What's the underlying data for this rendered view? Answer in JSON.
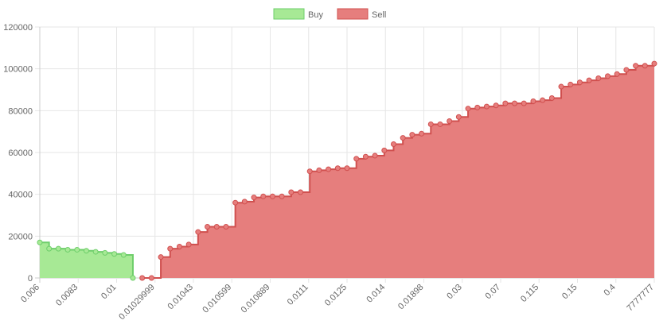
{
  "chart_data": {
    "type": "area",
    "title": "",
    "xlabel": "",
    "ylabel": "",
    "ylim": [
      0,
      120000
    ],
    "y_ticks": [
      "0",
      "20000",
      "40000",
      "60000",
      "80000",
      "100000",
      "120000"
    ],
    "y_tick_values": [
      0,
      20000,
      40000,
      60000,
      80000,
      100000,
      120000
    ],
    "grid": true,
    "legend_position": "top-center",
    "x_tick_labels": [
      "0.006",
      "0.0083",
      "0.01",
      "0.01029999",
      "0.01043",
      "0.010599",
      "0.010889",
      "0.0111",
      "0.0125",
      "0.014",
      "0.01898",
      "0.03",
      "0.07",
      "0.115",
      "0.15",
      "0.4",
      "7777777"
    ],
    "series": [
      {
        "name": "Buy",
        "color": "#6ece6b",
        "fill": "#a7e995",
        "points": [
          17000,
          14000,
          14000,
          13500,
          13500,
          13000,
          12500,
          12000,
          11500,
          11000,
          0
        ]
      },
      {
        "name": "Sell",
        "color": "#d0504f",
        "fill": "#e67e7d",
        "offset": 11,
        "points": [
          0,
          0,
          10000,
          14000,
          15000,
          16000,
          22000,
          24500,
          24500,
          24500,
          36000,
          36500,
          38500,
          39000,
          39000,
          39000,
          41000,
          41000,
          51000,
          51500,
          52000,
          52500,
          52500,
          57000,
          58000,
          58500,
          61000,
          64000,
          67000,
          68500,
          69000,
          73500,
          73500,
          75000,
          77000,
          81000,
          81500,
          82000,
          82500,
          83500,
          83500,
          83500,
          84500,
          85000,
          86000,
          91500,
          92500,
          93500,
          94500,
          95500,
          96500,
          97500,
          99500,
          101500,
          101500,
          102500
        ]
      }
    ]
  }
}
